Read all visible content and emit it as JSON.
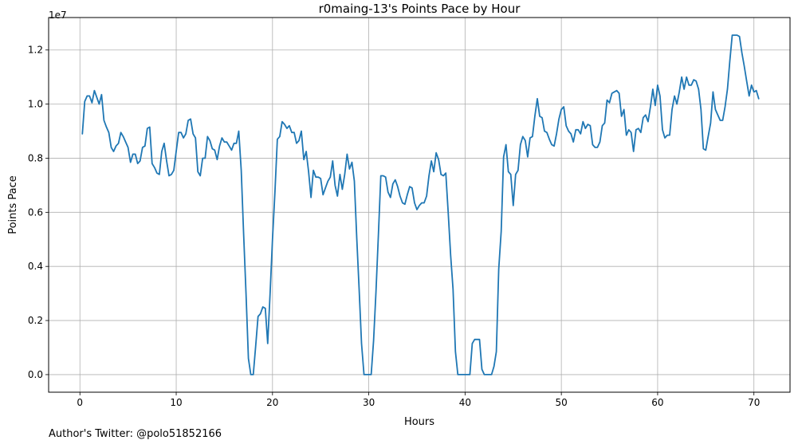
{
  "footer": {
    "text": "Author's Twitter: @polo51852166"
  },
  "chart_data": {
    "type": "line",
    "title": "r0maing-13's Points Pace by Hour",
    "xlabel": "Hours",
    "ylabel": "Points Pace",
    "offset_label": "1e7",
    "xlim": [
      -3.25,
      73.75
    ],
    "ylim": [
      -650000,
      13200000
    ],
    "x_ticks": [
      0,
      10,
      20,
      30,
      40,
      50,
      60,
      70
    ],
    "x_tick_labels": [
      "0",
      "10",
      "20",
      "30",
      "40",
      "50",
      "60",
      "70"
    ],
    "y_ticks": [
      0,
      2000000,
      4000000,
      6000000,
      8000000,
      10000000,
      12000000
    ],
    "y_tick_labels": [
      "0.0",
      "0.2",
      "0.4",
      "0.6",
      "0.8",
      "1.0",
      "1.2"
    ],
    "grid": true,
    "line_color": "#1f77b4",
    "series": [
      {
        "x": [
          0.25,
          0.5,
          0.75,
          1,
          1.25,
          1.5,
          1.75,
          2,
          2.25,
          2.5,
          2.75,
          3,
          3.25,
          3.5,
          3.75,
          4,
          4.25,
          4.5,
          4.75,
          5,
          5.25,
          5.5,
          5.75,
          6,
          6.25,
          6.5,
          6.75,
          7,
          7.25,
          7.5,
          7.75,
          8,
          8.25,
          8.5,
          8.75,
          9,
          9.25,
          9.5,
          9.75,
          10,
          10.25,
          10.5,
          10.75,
          11,
          11.25,
          11.5,
          11.75,
          12,
          12.25,
          12.5,
          12.75,
          13,
          13.25,
          13.5,
          13.75,
          14,
          14.25,
          14.5,
          14.75,
          15,
          15.25,
          15.5,
          15.75,
          16,
          16.25,
          16.5,
          16.75,
          17,
          17.25,
          17.5,
          17.75,
          18,
          18.25,
          18.5,
          18.75,
          19,
          19.25,
          19.5,
          19.75,
          20,
          20.25,
          20.5,
          20.75,
          21,
          21.25,
          21.5,
          21.75,
          22,
          22.25,
          22.5,
          22.75,
          23,
          23.25,
          23.5,
          23.75,
          24,
          24.25,
          24.5,
          24.75,
          25,
          25.25,
          25.5,
          25.75,
          26,
          26.25,
          26.5,
          26.75,
          27,
          27.25,
          27.5,
          27.75,
          28,
          28.25,
          28.5,
          28.75,
          29,
          29.25,
          29.5,
          29.75,
          30,
          30.25,
          30.5,
          30.75,
          31,
          31.25,
          31.5,
          31.75,
          32,
          32.25,
          32.5,
          32.75,
          33,
          33.25,
          33.5,
          33.75,
          34,
          34.25,
          34.5,
          34.75,
          35,
          35.25,
          35.5,
          35.75,
          36,
          36.25,
          36.5,
          36.75,
          37,
          37.25,
          37.5,
          37.75,
          38,
          38.25,
          38.5,
          38.75,
          39,
          39.25,
          39.5,
          39.75,
          40,
          40.25,
          40.5,
          40.75,
          41,
          41.25,
          41.5,
          41.75,
          42,
          42.25,
          42.5,
          42.75,
          43,
          43.25,
          43.5,
          43.75,
          44,
          44.25,
          44.5,
          44.75,
          45,
          45.25,
          45.5,
          45.75,
          46,
          46.25,
          46.5,
          46.75,
          47,
          47.25,
          47.5,
          47.75,
          48,
          48.25,
          48.5,
          48.75,
          49,
          49.25,
          49.5,
          49.75,
          50,
          50.25,
          50.5,
          50.75,
          51,
          51.25,
          51.5,
          51.75,
          52,
          52.25,
          52.5,
          52.75,
          53,
          53.25,
          53.5,
          53.75,
          54,
          54.25,
          54.5,
          54.75,
          55,
          55.25,
          55.5,
          55.75,
          56,
          56.25,
          56.5,
          56.75,
          57,
          57.25,
          57.5,
          57.75,
          58,
          58.25,
          58.5,
          58.75,
          59,
          59.25,
          59.5,
          59.75,
          60,
          60.25,
          60.5,
          60.75,
          61,
          61.25,
          61.5,
          61.75,
          62,
          62.25,
          62.5,
          62.75,
          63,
          63.25,
          63.5,
          63.75,
          64,
          64.25,
          64.5,
          64.75,
          65,
          65.25,
          65.5,
          65.75,
          66,
          66.25,
          66.5,
          66.75,
          67,
          67.25,
          67.5,
          67.75,
          68,
          68.25,
          68.5,
          68.75,
          69,
          69.25,
          69.5,
          69.75,
          70,
          70.25,
          70.5
        ],
        "y": [
          8900000,
          10100000,
          10300000,
          10300000,
          10050000,
          10500000,
          10250000,
          10000000,
          10350000,
          9400000,
          9150000,
          8950000,
          8400000,
          8250000,
          8450000,
          8550000,
          8950000,
          8800000,
          8600000,
          8400000,
          7850000,
          8150000,
          8150000,
          7800000,
          7900000,
          8400000,
          8450000,
          9100000,
          9150000,
          7800000,
          7650000,
          7450000,
          7400000,
          8250000,
          8550000,
          7900000,
          7350000,
          7400000,
          7550000,
          8250000,
          8950000,
          8950000,
          8750000,
          8900000,
          9400000,
          9450000,
          8900000,
          8750000,
          7500000,
          7350000,
          8000000,
          8000000,
          8800000,
          8650000,
          8350000,
          8300000,
          7950000,
          8450000,
          8750000,
          8600000,
          8600000,
          8450000,
          8300000,
          8550000,
          8550000,
          9000000,
          7550000,
          5200000,
          3000000,
          600000,
          0,
          0,
          1050000,
          2150000,
          2250000,
          2500000,
          2450000,
          1150000,
          3000000,
          5000000,
          6700000,
          8700000,
          8800000,
          9350000,
          9250000,
          9100000,
          9200000,
          8950000,
          8950000,
          8550000,
          8650000,
          9000000,
          7950000,
          8250000,
          7500000,
          6550000,
          7550000,
          7300000,
          7300000,
          7250000,
          6650000,
          6900000,
          7150000,
          7300000,
          7900000,
          7000000,
          6600000,
          7400000,
          6850000,
          7400000,
          8150000,
          7600000,
          7850000,
          7150000,
          5050000,
          3150000,
          1150000,
          0,
          0,
          0,
          0,
          1250000,
          3050000,
          5200000,
          7350000,
          7350000,
          7300000,
          6750000,
          6550000,
          7050000,
          7200000,
          6950000,
          6600000,
          6350000,
          6300000,
          6650000,
          6950000,
          6900000,
          6350000,
          6100000,
          6250000,
          6350000,
          6350000,
          6600000,
          7350000,
          7900000,
          7500000,
          8200000,
          7950000,
          7400000,
          7350000,
          7450000,
          6000000,
          4400000,
          3150000,
          850000,
          0,
          0,
          0,
          0,
          0,
          0,
          1150000,
          1300000,
          1300000,
          1300000,
          200000,
          0,
          0,
          0,
          0,
          300000,
          850000,
          3900000,
          5300000,
          8050000,
          8500000,
          7500000,
          7400000,
          6250000,
          7400000,
          7550000,
          8500000,
          8800000,
          8650000,
          8050000,
          8750000,
          8800000,
          9550000,
          10200000,
          9550000,
          9500000,
          9000000,
          8950000,
          8700000,
          8500000,
          8450000,
          8900000,
          9450000,
          9800000,
          9900000,
          9200000,
          9000000,
          8900000,
          8600000,
          9050000,
          9050000,
          8900000,
          9350000,
          9100000,
          9250000,
          9200000,
          8500000,
          8400000,
          8400000,
          8600000,
          9200000,
          9300000,
          10150000,
          10050000,
          10400000,
          10450000,
          10500000,
          10400000,
          9550000,
          9800000,
          8850000,
          9050000,
          8950000,
          8250000,
          9050000,
          9100000,
          8950000,
          9500000,
          9600000,
          9350000,
          9900000,
          10550000,
          9950000,
          10700000,
          10300000,
          9050000,
          8750000,
          8850000,
          8850000,
          9800000,
          10300000,
          10000000,
          10450000,
          11000000,
          10550000,
          11000000,
          10700000,
          10700000,
          10900000,
          10850000,
          10550000,
          9800000,
          8350000,
          8300000,
          8800000,
          9300000,
          10450000,
          9800000,
          9600000,
          9400000,
          9400000,
          9900000,
          10550000,
          11600000,
          12550000,
          12550000,
          12550000,
          12500000,
          11900000,
          11400000,
          10850000,
          10300000,
          10700000,
          10450000,
          10500000,
          10200000
        ]
      }
    ]
  }
}
